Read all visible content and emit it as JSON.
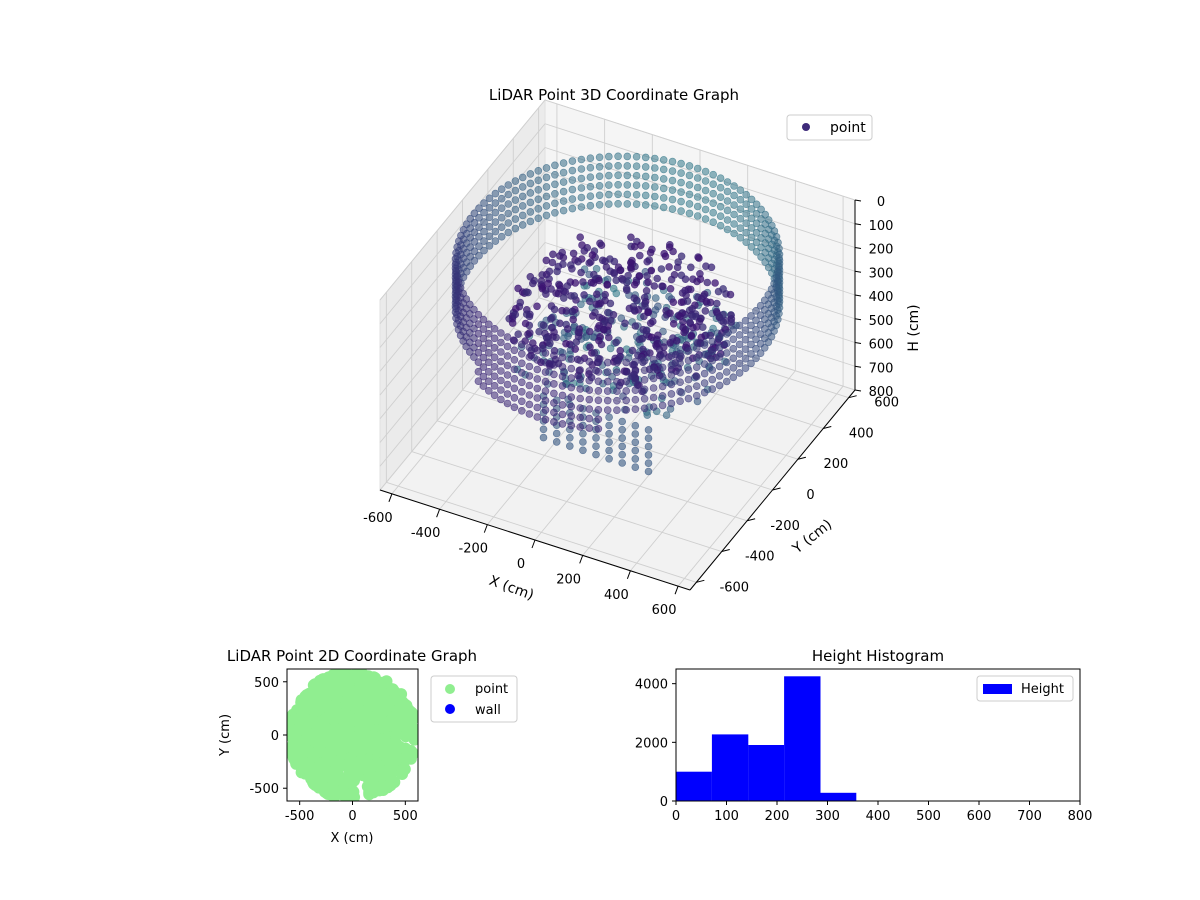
{
  "figure": {
    "background": "#ffffff"
  },
  "chart_data": [
    {
      "type": "scatter",
      "projection": "3d",
      "title": "LiDAR Point 3D Coordinate Graph",
      "xlabel": "X (cm)",
      "ylabel": "Y (cm)",
      "zlabel": "H (cm)",
      "xlim": [
        -650,
        650
      ],
      "ylim": [
        -650,
        650
      ],
      "zlim": [
        0,
        800
      ],
      "z_inverted": true,
      "xticks": [
        -600,
        -400,
        -200,
        0,
        200,
        400,
        600
      ],
      "yticks": [
        -600,
        -400,
        -200,
        0,
        200,
        400,
        600
      ],
      "zticks": [
        0,
        100,
        200,
        300,
        400,
        500,
        600,
        700,
        800
      ],
      "legend": {
        "position": "top-right",
        "entries": [
          "point"
        ]
      },
      "colormap": "viridis",
      "marker_color": "#3e2b7a",
      "grid": true,
      "series": [
        {
          "name": "point",
          "wall": {
            "radius_cm": 600,
            "h_range": [
              0,
              300
            ]
          },
          "cluster_color_range": [
            "#3b0f70",
            "#31868c"
          ]
        }
      ]
    },
    {
      "type": "scatter",
      "title": "LiDAR Point 2D Coordinate Graph",
      "xlabel": "X (cm)",
      "ylabel": "Y (cm)",
      "xlim": [
        -620,
        620
      ],
      "ylim": [
        -620,
        620
      ],
      "xticks": [
        -500,
        0,
        500
      ],
      "yticks": [
        -500,
        0,
        500
      ],
      "legend": {
        "position": "outside-right",
        "entries": [
          "point",
          "wall"
        ]
      },
      "series": [
        {
          "name": "point",
          "color": "#90ee90"
        },
        {
          "name": "wall",
          "color": "#0000ff"
        }
      ]
    },
    {
      "type": "bar",
      "title": "Height Histogram",
      "xlim": [
        0,
        800
      ],
      "ylim": [
        0,
        4500
      ],
      "xticks": [
        0,
        100,
        200,
        300,
        400,
        500,
        600,
        700,
        800
      ],
      "yticks": [
        0,
        2000,
        4000
      ],
      "legend": {
        "position": "top-right",
        "entries": [
          "Height"
        ]
      },
      "color": "#0000ff",
      "bins": [
        {
          "x0": 0,
          "x1": 71,
          "count": 1000
        },
        {
          "x0": 71,
          "x1": 143,
          "count": 2270
        },
        {
          "x0": 143,
          "x1": 214,
          "count": 1910
        },
        {
          "x0": 214,
          "x1": 286,
          "count": 4250
        },
        {
          "x0": 286,
          "x1": 357,
          "count": 280
        }
      ],
      "series": [
        {
          "name": "Height"
        }
      ]
    }
  ]
}
